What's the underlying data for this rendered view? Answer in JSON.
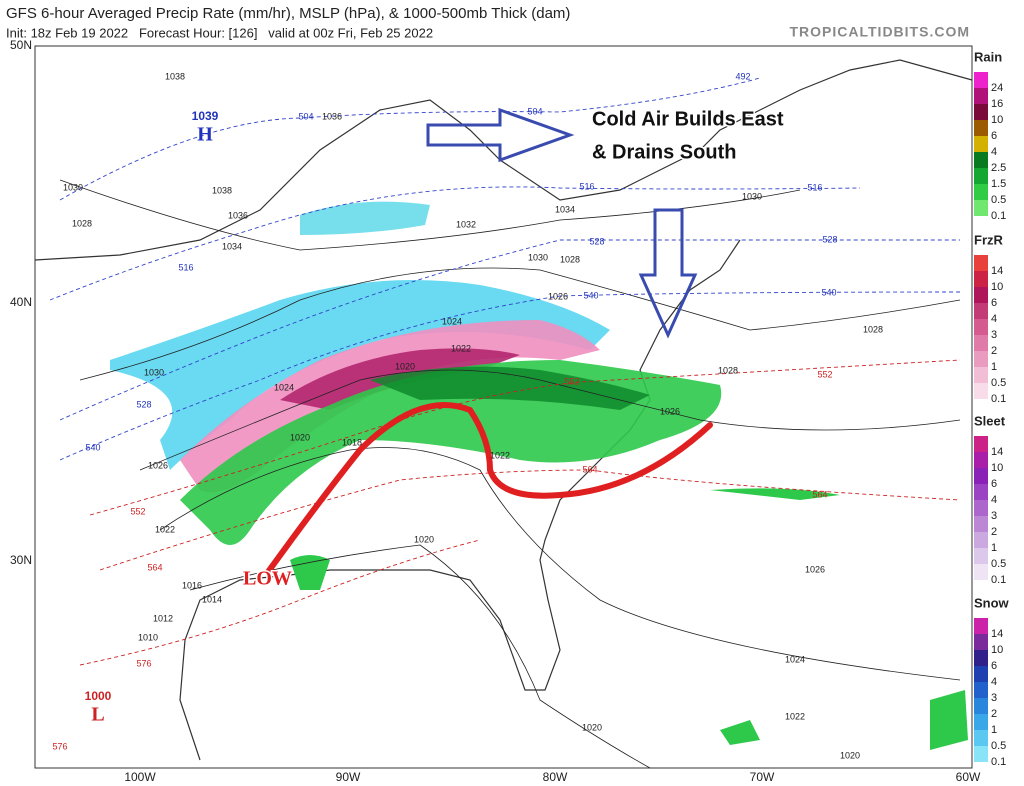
{
  "header": {
    "title": "GFS 6-hour Averaged Precip Rate (mm/hr), MSLP (hPa), & 1000-500mb Thick (dam)",
    "subtitle": "Init: 18z Feb 19 2022   Forecast Hour: [126]   valid at 00z Fri, Feb 25 2022",
    "source": "TROPICALTIDBITS.COM"
  },
  "map": {
    "lat_labels": [
      "50N",
      "40N",
      "30N"
    ],
    "lon_labels": [
      "100W",
      "90W",
      "80W",
      "70W",
      "60W"
    ],
    "annotations": [
      "Cold Air Builds East",
      "& Drains South",
      "LOW"
    ],
    "pressure_centers": [
      {
        "value": "1039",
        "letter": "H"
      },
      {
        "value": "1000",
        "letter": "L"
      }
    ],
    "isobar_labels": [
      "1038",
      "1036",
      "1038",
      "1036",
      "1034",
      "1032",
      "1034",
      "1030",
      "1028",
      "1026",
      "1024",
      "1022",
      "1020",
      "1024",
      "1020",
      "1018",
      "1022",
      "1020",
      "1030",
      "1028",
      "1030",
      "1026",
      "1022",
      "1016",
      "1014",
      "1012",
      "1010",
      "1028",
      "1026",
      "1028",
      "1026",
      "1024",
      "1022",
      "1020",
      "1020",
      "1030"
    ],
    "thickness_labels": [
      "504",
      "504",
      "492",
      "516",
      "516",
      "516",
      "528",
      "528",
      "528",
      "540",
      "540",
      "540",
      "552",
      "552",
      "552",
      "564",
      "564",
      "564",
      "576",
      "576"
    ]
  },
  "legends": [
    {
      "title": "Rain",
      "labels": [
        "24",
        "16",
        "10",
        "6",
        "4",
        "2.5",
        "1.5",
        "0.5",
        "0.1"
      ]
    },
    {
      "title": "FrzR",
      "labels": [
        "14",
        "10",
        "6",
        "4",
        "3",
        "2",
        "1",
        "0.5",
        "0.1"
      ]
    },
    {
      "title": "Sleet",
      "labels": [
        "14",
        "10",
        "6",
        "4",
        "3",
        "2",
        "1",
        "0.5",
        "0.1"
      ]
    },
    {
      "title": "Snow",
      "labels": [
        "14",
        "10",
        "6",
        "4",
        "3",
        "2",
        "1",
        "0.5",
        "0.1"
      ]
    }
  ]
}
